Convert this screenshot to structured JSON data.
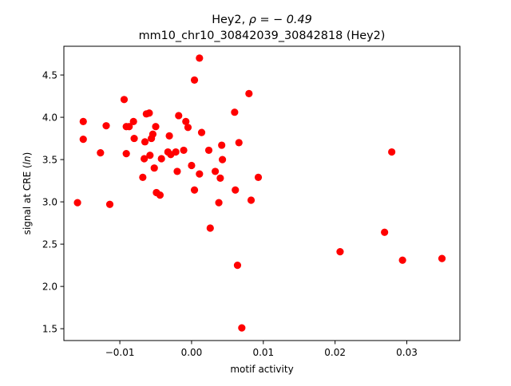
{
  "chart_data": {
    "type": "scatter",
    "title_line1_prefix": "Hey2, ",
    "title_line1_rho": "ρ = − 0.49",
    "title_line2": "mm10_chr10_30842039_30842818 (Hey2)",
    "xlabel": "motif activity",
    "ylabel_prefix": "signal at CRE (",
    "ylabel_italic": "ln",
    "ylabel_suffix": ")",
    "xlim": [
      -0.0178,
      0.0374
    ],
    "ylim": [
      1.36,
      4.84
    ],
    "xticks": [
      {
        "value": -0.01,
        "label": "−0.01"
      },
      {
        "value": 0.0,
        "label": "0.00"
      },
      {
        "value": 0.01,
        "label": "0.01"
      },
      {
        "value": 0.02,
        "label": "0.02"
      },
      {
        "value": 0.03,
        "label": "0.03"
      }
    ],
    "yticks": [
      {
        "value": 1.5,
        "label": "1.5"
      },
      {
        "value": 2.0,
        "label": "2.0"
      },
      {
        "value": 2.5,
        "label": "2.5"
      },
      {
        "value": 3.0,
        "label": "3.0"
      },
      {
        "value": 3.5,
        "label": "3.5"
      },
      {
        "value": 4.0,
        "label": "4.0"
      },
      {
        "value": 4.5,
        "label": "4.5"
      }
    ],
    "grid": false,
    "marker_color": "#ff0000",
    "points": [
      {
        "x": -0.0159,
        "y": 2.99
      },
      {
        "x": -0.0151,
        "y": 3.95
      },
      {
        "x": -0.0151,
        "y": 3.74
      },
      {
        "x": -0.0127,
        "y": 3.58
      },
      {
        "x": -0.0119,
        "y": 3.9
      },
      {
        "x": -0.0114,
        "y": 2.97
      },
      {
        "x": -0.0094,
        "y": 4.21
      },
      {
        "x": -0.0091,
        "y": 3.89
      },
      {
        "x": -0.0091,
        "y": 3.57
      },
      {
        "x": -0.0087,
        "y": 3.89
      },
      {
        "x": -0.0081,
        "y": 3.95
      },
      {
        "x": -0.008,
        "y": 3.75
      },
      {
        "x": -0.0068,
        "y": 3.29
      },
      {
        "x": -0.0066,
        "y": 3.51
      },
      {
        "x": -0.0065,
        "y": 3.71
      },
      {
        "x": -0.0063,
        "y": 4.04
      },
      {
        "x": -0.0059,
        "y": 4.05
      },
      {
        "x": -0.0058,
        "y": 3.55
      },
      {
        "x": -0.0056,
        "y": 3.75
      },
      {
        "x": -0.0054,
        "y": 3.8
      },
      {
        "x": -0.0052,
        "y": 3.4
      },
      {
        "x": -0.005,
        "y": 3.89
      },
      {
        "x": -0.0049,
        "y": 3.11
      },
      {
        "x": -0.0044,
        "y": 3.08
      },
      {
        "x": -0.0042,
        "y": 3.51
      },
      {
        "x": -0.0033,
        "y": 3.59
      },
      {
        "x": -0.0031,
        "y": 3.78
      },
      {
        "x": -0.0029,
        "y": 3.56
      },
      {
        "x": -0.0022,
        "y": 3.59
      },
      {
        "x": -0.002,
        "y": 3.36
      },
      {
        "x": -0.0018,
        "y": 4.02
      },
      {
        "x": -0.0011,
        "y": 3.61
      },
      {
        "x": -0.0008,
        "y": 3.95
      },
      {
        "x": -0.0005,
        "y": 3.88
      },
      {
        "x": 0.0,
        "y": 3.43
      },
      {
        "x": 0.0004,
        "y": 3.14
      },
      {
        "x": 0.0004,
        "y": 4.44
      },
      {
        "x": 0.0011,
        "y": 4.7
      },
      {
        "x": 0.0011,
        "y": 3.33
      },
      {
        "x": 0.0014,
        "y": 3.82
      },
      {
        "x": 0.0024,
        "y": 3.61
      },
      {
        "x": 0.0026,
        "y": 2.69
      },
      {
        "x": 0.0033,
        "y": 3.36
      },
      {
        "x": 0.0038,
        "y": 2.99
      },
      {
        "x": 0.004,
        "y": 3.28
      },
      {
        "x": 0.0042,
        "y": 3.67
      },
      {
        "x": 0.0043,
        "y": 3.5
      },
      {
        "x": 0.006,
        "y": 4.06
      },
      {
        "x": 0.0061,
        "y": 3.14
      },
      {
        "x": 0.0064,
        "y": 2.25
      },
      {
        "x": 0.0066,
        "y": 3.7
      },
      {
        "x": 0.007,
        "y": 1.51
      },
      {
        "x": 0.008,
        "y": 4.28
      },
      {
        "x": 0.0083,
        "y": 3.02
      },
      {
        "x": 0.0093,
        "y": 3.29
      },
      {
        "x": 0.0207,
        "y": 2.41
      },
      {
        "x": 0.0269,
        "y": 2.64
      },
      {
        "x": 0.0279,
        "y": 3.59
      },
      {
        "x": 0.0294,
        "y": 2.31
      },
      {
        "x": 0.0349,
        "y": 2.33
      }
    ]
  }
}
